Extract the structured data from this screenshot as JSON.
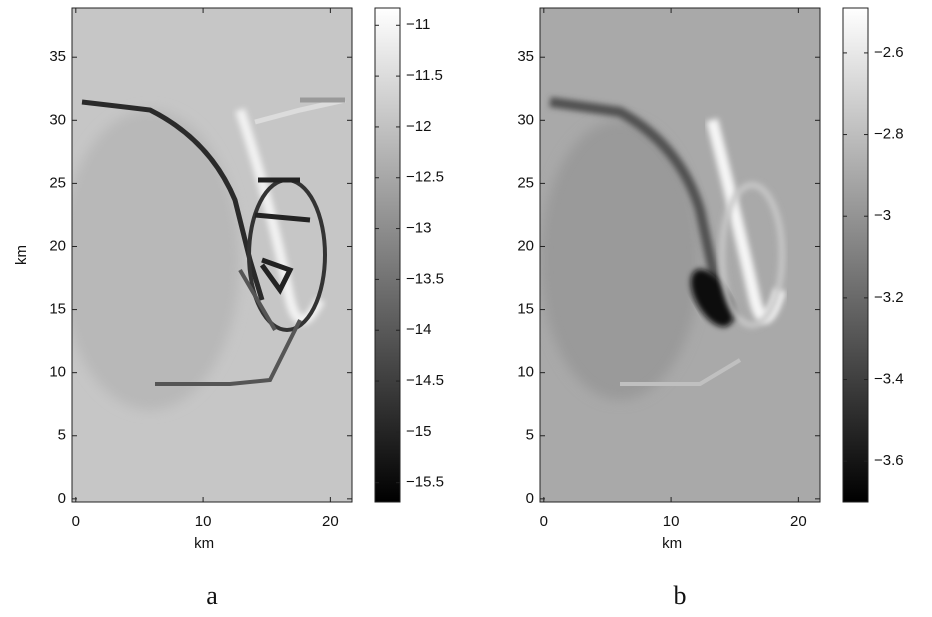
{
  "chart_data": [
    {
      "type": "heatmap",
      "caption": "a",
      "xlabel": "km",
      "ylabel": "km",
      "xlim": [
        -0.3,
        21.7
      ],
      "ylim": [
        -0.25,
        38.9
      ],
      "xticks": [
        0,
        10,
        20
      ],
      "yticks": [
        0,
        5,
        10,
        15,
        20,
        25,
        30,
        35
      ],
      "colormap": "gray",
      "clim": [
        -15.69,
        -10.83
      ],
      "cticks": [
        {
          "value": -11,
          "label": "−11"
        },
        {
          "value": -11.5,
          "label": "−11.5"
        },
        {
          "value": -12,
          "label": "−12"
        },
        {
          "value": -12.5,
          "label": "−12.5"
        },
        {
          "value": -13,
          "label": "−13"
        },
        {
          "value": -13.5,
          "label": "−13.5"
        },
        {
          "value": -14,
          "label": "−14"
        },
        {
          "value": -14.5,
          "label": "−14.5"
        },
        {
          "value": -15,
          "label": "−15"
        },
        {
          "value": -15.5,
          "label": "−15.5"
        }
      ]
    },
    {
      "type": "heatmap",
      "caption": "b",
      "xlabel": "km",
      "xlim": [
        -0.3,
        21.7
      ],
      "ylim": [
        -0.25,
        38.9
      ],
      "xticks": [
        0,
        10,
        20
      ],
      "yticks": [
        0,
        5,
        10,
        15,
        20,
        25,
        30,
        35
      ],
      "colormap": "gray",
      "clim": [
        -3.7,
        -2.49
      ],
      "cticks": [
        {
          "value": -2.6,
          "label": "−2.6"
        },
        {
          "value": -2.8,
          "label": "−2.8"
        },
        {
          "value": -3,
          "label": "−3"
        },
        {
          "value": -3.2,
          "label": "−3.2"
        },
        {
          "value": -3.4,
          "label": "−3.4"
        },
        {
          "value": -3.6,
          "label": "−3.6"
        }
      ]
    }
  ]
}
